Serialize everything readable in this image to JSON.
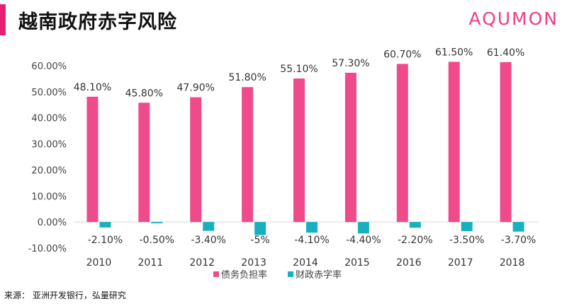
{
  "header": {
    "title": "越南政府赤字风险",
    "brand": "AQUMON"
  },
  "footer": {
    "source": "来源： 亚洲开发银行，弘量研究"
  },
  "colors": {
    "accent": "#e81e6e",
    "debt_series": "#ef4b8b",
    "deficit_series": "#18b0c0"
  },
  "chart_data": {
    "type": "bar",
    "categories": [
      "2010",
      "2011",
      "2012",
      "2013",
      "2014",
      "2015",
      "2016",
      "2017",
      "2018"
    ],
    "series": [
      {
        "name": "债务负担率",
        "values": [
          48.1,
          45.8,
          47.9,
          51.8,
          55.1,
          57.3,
          60.7,
          61.5,
          61.4
        ],
        "labels": [
          "48.10%",
          "45.80%",
          "47.90%",
          "51.80%",
          "55.10%",
          "57.30%",
          "60.70%",
          "61.50%",
          "61.40%"
        ]
      },
      {
        "name": "财政赤字率",
        "values": [
          -2.1,
          -0.5,
          -3.4,
          -5,
          -4.1,
          -4.4,
          -2.2,
          -3.5,
          -3.7
        ],
        "labels": [
          "-2.10%",
          "-0.50%",
          "-3.40%",
          "-5%",
          "-4.10%",
          "-4.40%",
          "-2.20%",
          "-3.50%",
          "-3.70%"
        ]
      }
    ],
    "yticks": [
      "60.00%",
      "50.00%",
      "40.00%",
      "30.00%",
      "20.00%",
      "10.00%",
      "0.00%",
      "-10.00%"
    ],
    "ylim": [
      -10,
      60
    ],
    "grid": false,
    "legend": "bottom"
  }
}
